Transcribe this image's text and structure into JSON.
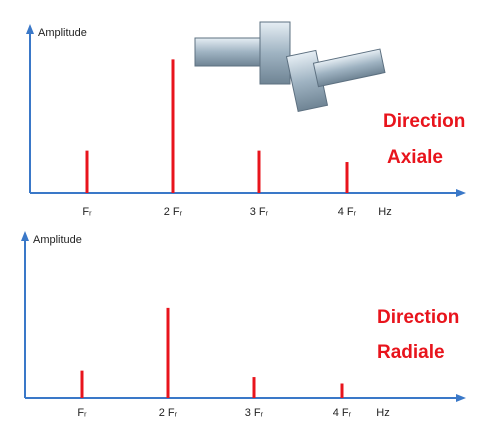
{
  "chart_data": [
    {
      "type": "spectrum",
      "y_label": "Amplitude",
      "x_label": "Hz",
      "categories": [
        "Fᵣ",
        "2 Fᵣ",
        "3 Fᵣ",
        "4 Fᵣ"
      ],
      "values": [
        26,
        82,
        26,
        19
      ],
      "color": "#e8141c",
      "ylim": [
        0,
        100
      ],
      "annotation": [
        "Direction",
        "Axiale"
      ]
    },
    {
      "type": "spectrum",
      "y_label": "Amplitude",
      "x_label": "Hz",
      "categories": [
        "Fᵣ",
        "2 Fᵣ",
        "3 Fᵣ",
        "4 Fᵣ"
      ],
      "values": [
        17,
        56,
        13,
        9
      ],
      "color": "#e8141c",
      "ylim": [
        0,
        100
      ],
      "annotation": [
        "Direction",
        "Radiale"
      ]
    }
  ]
}
